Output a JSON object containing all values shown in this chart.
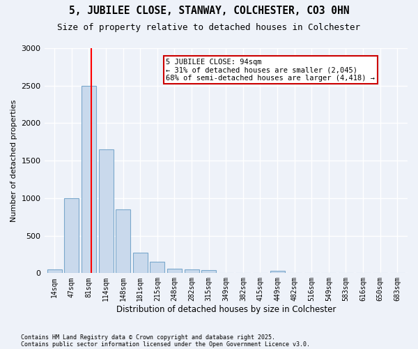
{
  "title_line1": "5, JUBILEE CLOSE, STANWAY, COLCHESTER, CO3 0HN",
  "title_line2": "Size of property relative to detached houses in Colchester",
  "xlabel": "Distribution of detached houses by size in Colchester",
  "ylabel": "Number of detached properties",
  "categories": [
    "14sqm",
    "47sqm",
    "81sqm",
    "114sqm",
    "148sqm",
    "181sqm",
    "215sqm",
    "248sqm",
    "282sqm",
    "315sqm",
    "349sqm",
    "382sqm",
    "415sqm",
    "449sqm",
    "482sqm",
    "516sqm",
    "549sqm",
    "583sqm",
    "616sqm",
    "650sqm",
    "683sqm"
  ],
  "values": [
    50,
    1000,
    2500,
    1650,
    850,
    270,
    150,
    60,
    45,
    40,
    0,
    0,
    0,
    30,
    0,
    0,
    0,
    0,
    0,
    0,
    0
  ],
  "bar_color": "#c9d9ec",
  "bar_edgecolor": "#7aa8cc",
  "vline_pos": 2.13,
  "vline_color": "red",
  "annotation_text": "5 JUBILEE CLOSE: 94sqm\n← 31% of detached houses are smaller (2,045)\n68% of semi-detached houses are larger (4,418) →",
  "annotation_box_facecolor": "white",
  "annotation_box_edgecolor": "#cc0000",
  "ylim": [
    0,
    3000
  ],
  "yticks": [
    0,
    500,
    1000,
    1500,
    2000,
    2500,
    3000
  ],
  "background_color": "#eef2f9",
  "footnote1": "Contains HM Land Registry data © Crown copyright and database right 2025.",
  "footnote2": "Contains public sector information licensed under the Open Government Licence v3.0."
}
